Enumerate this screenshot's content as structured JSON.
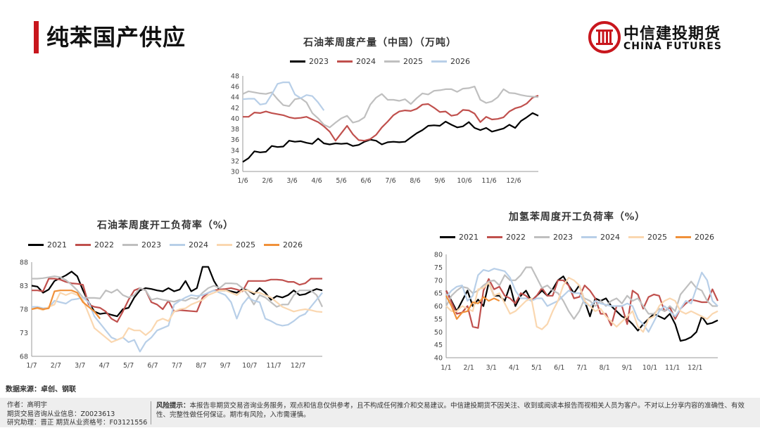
{
  "header": {
    "title": "纯苯国产供应"
  },
  "logo": {
    "name_cn": "中信建投期货",
    "name_en": "CHINA FUTURES",
    "accent": "#c8161d"
  },
  "source": "数据来源：卓创、钢联",
  "footer": {
    "author": "作者：高明宇",
    "license": "期货交易咨询从业信息：Z0023613",
    "assistant": "研究助理：晋正 期货从业资格号：F03121556",
    "risk_label": "风险提示：",
    "risk_text": "本报告非期货交易咨询业务服务，观点和信息仅供参考，且不构成任何推介和交易建议。中信建投期货不因关注、收到或阅读本报告而视相关人员为客户。不对以上分享内容的准确性、有效性、完整性做任何保证。期市有风险，入市需谨慎。"
  },
  "chart_data": [
    {
      "id": "chart1",
      "type": "line",
      "title": "石油苯周度产量（中国）（万吨）",
      "x_tick_labels": [
        "1/6",
        "2/6",
        "3/6",
        "4/6",
        "5/6",
        "6/6",
        "7/6",
        "8/6",
        "9/6",
        "10/6",
        "11/6",
        "12/6"
      ],
      "ylim": [
        30,
        48
      ],
      "y_ticks": [
        30,
        32,
        34,
        36,
        38,
        40,
        42,
        44,
        46,
        48
      ],
      "x_weeks": 52,
      "series": [
        {
          "name": "2023",
          "color": "#000000",
          "values": [
            31.8,
            32.5,
            33.8,
            33.6,
            33.7,
            34.8,
            34.6,
            34.7,
            35.8,
            35.6,
            35.7,
            35.4,
            35.2,
            36.2,
            35.3,
            35.1,
            35.3,
            35.2,
            35.3,
            34.8,
            35.0,
            35.6,
            36.0,
            35.8,
            35.1,
            35.5,
            35.6,
            35.5,
            35.6,
            36.4,
            37.2,
            37.8,
            38.6,
            38.7,
            38.6,
            39.4,
            38.8,
            38.3,
            38.5,
            39.3,
            38.2,
            37.8,
            38.2,
            37.5,
            37.8,
            38.1,
            38.8,
            38.2,
            39.5,
            40.2,
            41.0,
            40.5
          ]
        },
        {
          "name": "2024",
          "color": "#c0504d",
          "values": [
            40.3,
            40.3,
            41.1,
            41.0,
            41.3,
            41.0,
            40.8,
            40.6,
            40.2,
            40.0,
            40.1,
            40.3,
            39.8,
            39.3,
            38.5,
            37.5,
            35.8,
            37.2,
            38.6,
            37.0,
            35.9,
            35.8,
            36.1,
            36.9,
            38.3,
            39.4,
            40.6,
            41.3,
            41.5,
            41.4,
            41.8,
            42.6,
            42.7,
            42.0,
            41.2,
            41.3,
            40.5,
            40.7,
            41.6,
            41.5,
            40.9,
            39.3,
            40.3,
            39.8,
            39.9,
            40.2,
            41.3,
            41.9,
            42.2,
            42.8,
            43.9,
            44.3
          ]
        },
        {
          "name": "2025",
          "color": "#bfbfbf",
          "values": [
            44.6,
            45.1,
            44.9,
            44.7,
            44.6,
            44.9,
            43.6,
            42.5,
            42.3,
            43.6,
            43.8,
            43.0,
            41.0,
            40.0,
            38.8,
            38.3,
            39.2,
            40.0,
            40.5,
            39.2,
            39.5,
            40.2,
            42.6,
            43.9,
            44.6,
            43.5,
            43.5,
            43.3,
            43.6,
            42.7,
            43.8,
            44.7,
            44.5,
            45.2,
            45.3,
            45.5,
            45.5,
            45.0,
            45.6,
            45.7,
            46.0,
            43.5,
            42.9,
            43.2,
            44.0,
            45.5,
            44.8,
            44.7,
            44.4,
            44.2,
            44.1,
            44.0
          ]
        },
        {
          "name": "2026",
          "color": "#b8cfe8",
          "values": [
            43.6,
            43.7,
            43.7,
            42.6,
            42.8,
            44.5,
            46.5,
            46.8,
            46.8,
            44.5,
            43.8,
            44.4,
            44.2,
            43.0,
            41.5
          ]
        }
      ]
    },
    {
      "id": "chart2",
      "type": "line",
      "title": "石油苯周度开工负荷率（%）",
      "x_tick_labels": [
        "1/7",
        "2/7",
        "3/7",
        "4/7",
        "5/7",
        "6/7",
        "7/7",
        "8/7",
        "9/7",
        "10/7",
        "11/7",
        "12/7"
      ],
      "ylim": [
        68,
        88
      ],
      "y_ticks": [
        68,
        73,
        78,
        83,
        88
      ],
      "x_weeks": 52,
      "series": [
        {
          "name": "2021",
          "color": "#000000",
          "values": [
            83.0,
            82.8,
            81.5,
            82.2,
            84.0,
            84.6,
            85.2,
            86.0,
            85.0,
            82.0,
            79.5,
            77.5,
            77.0,
            77.2,
            76.8,
            76.5,
            78.0,
            78.3,
            80.5,
            82.0,
            82.5,
            82.3,
            82.0,
            81.8,
            82.5,
            81.8,
            82.2,
            84.0,
            81.8,
            82.5,
            87.0,
            87.0,
            84.0,
            82.0,
            82.0,
            81.8,
            81.5,
            82.3,
            82.0,
            81.2,
            82.5,
            81.5,
            80.0,
            80.8,
            80.5,
            81.0,
            82.0,
            81.0,
            81.2,
            81.8,
            82.3,
            82.0
          ]
        },
        {
          "name": "2022",
          "color": "#c0504d",
          "values": [
            82.0,
            82.0,
            81.8,
            84.5,
            84.5,
            84.3,
            83.8,
            83.5,
            83.4,
            83.2,
            79.0,
            78.5,
            78.3,
            77.5,
            76.0,
            75.3,
            77.5,
            80.0,
            82.0,
            82.5,
            82.0,
            79.5,
            79.0,
            78.0,
            79.8,
            77.5,
            77.8,
            77.7,
            77.6,
            77.5,
            80.5,
            81.5,
            82.0,
            82.2,
            82.3,
            82.5,
            82.2,
            81.8,
            84.0,
            84.0,
            84.0,
            84.0,
            84.3,
            84.3,
            84.2,
            83.8,
            83.8,
            83.2,
            83.5,
            84.5,
            84.5,
            84.5
          ]
        },
        {
          "name": "2023",
          "color": "#bfbfbf",
          "values": [
            84.5,
            84.5,
            84.6,
            84.8,
            85.0,
            84.8,
            84.2,
            83.2,
            82.0,
            80.5,
            80.4,
            80.4,
            80.3,
            82.0,
            81.5,
            82.2,
            81.0,
            80.5,
            81.0,
            82.5,
            82.0,
            80.0,
            80.3,
            80.0,
            79.8,
            79.6,
            80.0,
            79.8,
            80.4,
            80.2,
            81.5,
            82.5,
            83.0,
            82.5,
            83.5,
            83.5,
            83.4,
            82.5,
            81.0,
            79.0,
            81.0,
            80.5,
            79.5,
            78.5,
            79.0,
            79.0,
            81.0,
            82.0,
            82.0,
            82.0,
            81.0,
            78.5
          ]
        },
        {
          "name": "2024",
          "color": "#b8cfe8",
          "values": [
            78.5,
            78.5,
            78.2,
            78.3,
            79.8,
            79.5,
            79.2,
            80.0,
            80.2,
            80.5,
            79.5,
            76.5,
            75.0,
            73.5,
            72.0,
            71.5,
            72.0,
            71.0,
            71.5,
            69.0,
            71.0,
            72.0,
            73.5,
            74.0,
            74.5,
            79.0,
            79.8,
            80.5,
            81.0,
            80.8,
            81.0,
            81.5,
            82.0,
            81.5,
            81.0,
            79.5,
            76.0,
            79.0,
            80.5,
            79.8,
            79.5,
            76.0,
            75.5,
            74.8,
            74.5,
            74.7,
            75.5,
            76.5,
            77.0,
            78.5,
            80.0,
            81.5
          ]
        },
        {
          "name": "2025",
          "color": "#fad7b0",
          "values": [
            78.0,
            78.2,
            77.8,
            78.5,
            79.0,
            81.5,
            81.0,
            81.5,
            81.0,
            80.0,
            77.0,
            74.0,
            73.0,
            72.0,
            71.0,
            71.5,
            72.0,
            74.0,
            73.5,
            73.5,
            72.5,
            73.5,
            75.5,
            76.0,
            75.5,
            77.5,
            78.0,
            78.2,
            79.0,
            79.5,
            80.0,
            81.0,
            81.5,
            82.0,
            82.0,
            81.5,
            81.0,
            82.0,
            82.0,
            81.5,
            81.5,
            81.0,
            80.5,
            79.5,
            78.5,
            78.0,
            77.5,
            77.8,
            78.0,
            77.8,
            77.5,
            77.4
          ]
        },
        {
          "name": "2026",
          "color": "#f0913a",
          "values": [
            78.0,
            78.3,
            78.0,
            78.2,
            81.8,
            82.0,
            82.0,
            82.0,
            81.5,
            79.5,
            78.5,
            77.5,
            76.0
          ]
        }
      ]
    },
    {
      "id": "chart3",
      "type": "line",
      "title": "加氢苯周度开工负荷率（%）",
      "x_tick_labels": [
        "1/1",
        "2/1",
        "3/1",
        "4/1",
        "5/1",
        "6/1",
        "7/1",
        "8/1",
        "9/1",
        "10/1",
        "11/1",
        "12/1"
      ],
      "ylim": [
        40,
        80
      ],
      "y_ticks": [
        40,
        45,
        50,
        55,
        60,
        65,
        70,
        75,
        80
      ],
      "x_weeks": 52,
      "series": [
        {
          "name": "2021",
          "color": "#000000",
          "values": [
            66.0,
            62.0,
            58.0,
            62.0,
            66.0,
            60.0,
            62.5,
            60.0,
            69.0,
            64.0,
            64.0,
            62.0,
            68.0,
            60.0,
            64.0,
            66.0,
            62.0,
            64.0,
            66.0,
            64.0,
            66.5,
            70.0,
            71.5,
            68.0,
            65.0,
            68.0,
            62.0,
            56.0,
            63.0,
            62.0,
            63.0,
            60.0,
            58.0,
            56.0,
            55.0,
            53.0,
            50.5,
            53.0,
            55.0,
            57.0,
            56.0,
            55.0,
            57.0,
            53.0,
            46.5,
            47.0,
            48.0,
            50.0,
            56.0,
            53.0,
            53.5,
            54.5
          ]
        },
        {
          "name": "2022",
          "color": "#c0504d",
          "values": [
            66.0,
            61.5,
            57.0,
            57.5,
            60.0,
            52.0,
            51.5,
            66.0,
            70.5,
            66.5,
            67.5,
            64.0,
            63.0,
            61.0,
            65.0,
            64.0,
            62.0,
            64.0,
            67.0,
            64.0,
            64.0,
            70.0,
            70.0,
            68.0,
            63.0,
            63.5,
            68.0,
            66.0,
            63.0,
            57.0,
            57.0,
            52.5,
            60.0,
            60.0,
            53.0,
            66.0,
            64.5,
            59.0,
            63.5,
            64.5,
            64.0,
            58.0,
            59.5,
            55.0,
            59.0,
            61.0,
            62.5,
            62.0,
            61.5,
            61.5,
            66.5,
            62.0
          ]
        },
        {
          "name": "2023",
          "color": "#bfbfbf",
          "values": [
            60.0,
            64.0,
            66.0,
            67.5,
            67.0,
            65.0,
            66.0,
            68.0,
            69.5,
            70.0,
            68.0,
            72.0,
            70.0,
            70.0,
            72.0,
            75.0,
            75.0,
            71.0,
            67.0,
            68.0,
            66.0,
            65.0,
            62.0,
            58.0,
            55.0,
            58.0,
            63.0,
            62.0,
            60.0,
            62.0,
            60.0,
            62.0,
            63.0,
            61.0,
            64.0,
            62.0,
            63.0,
            60.0,
            57.0,
            57.0,
            59.0,
            58.0,
            60.0,
            58.0,
            64.5,
            67.0,
            69.5,
            67.0,
            66.0,
            62.0,
            60.0,
            60.0
          ]
        },
        {
          "name": "2024",
          "color": "#b8cfe8",
          "values": [
            63.5,
            66.0,
            67.5,
            68.0,
            62.0,
            64.0,
            72.0,
            74.0,
            73.5,
            74.5,
            74.0,
            73.5,
            71.0,
            66.0,
            63.0,
            63.0,
            62.0,
            63.0,
            63.0,
            60.0,
            61.0,
            62.0,
            64.0,
            66.0,
            65.0,
            65.0,
            61.0,
            60.0,
            62.0,
            61.0,
            60.5,
            60.0,
            60.0,
            60.0,
            61.0,
            60.0,
            55.0,
            53.0,
            50.0,
            54.0,
            58.0,
            60.0,
            58.0,
            56.0,
            59.0,
            62.0,
            61.0,
            67.0,
            73.0,
            70.0,
            62.0,
            60.0
          ]
        },
        {
          "name": "2025",
          "color": "#fad7b0",
          "values": [
            60.0,
            58.0,
            58.0,
            60.0,
            59.0,
            58.0,
            66.5,
            67.0,
            69.0,
            64.0,
            65.0,
            61.0,
            57.0,
            58.0,
            60.0,
            62.0,
            63.0,
            52.0,
            51.0,
            53.0,
            58.0,
            62.0,
            68.0,
            71.0,
            70.0,
            68.0,
            62.0,
            60.0,
            58.0,
            59.0,
            56.0,
            54.0,
            52.0,
            54.0,
            56.0,
            58.0,
            52.0,
            50.0,
            55.0,
            56.0,
            60.0,
            62.0,
            63.0,
            62.0,
            58.0,
            57.0,
            58.0,
            57.0,
            56.0,
            55.0,
            57.0,
            58.0
          ]
        },
        {
          "name": "2026",
          "color": "#f0913a",
          "values": [
            64.0,
            60.0,
            55.0,
            57.5,
            58.0,
            61.5,
            61.0,
            63.5,
            62.0,
            63.0,
            62.0
          ]
        }
      ]
    }
  ]
}
